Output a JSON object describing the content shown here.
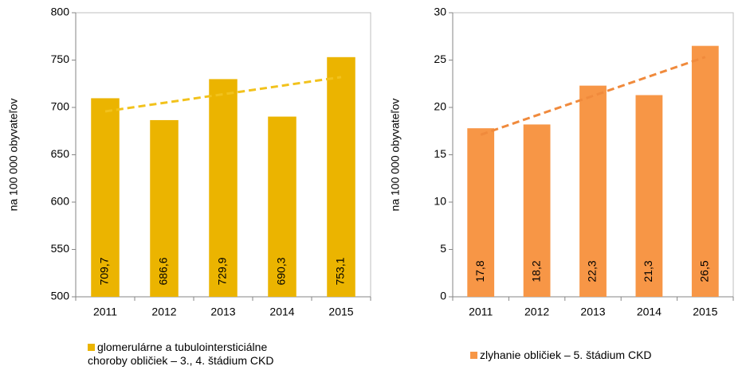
{
  "chart_data": [
    {
      "type": "bar",
      "y_label": "na 100 000 obyvateľov",
      "categories": [
        "2011",
        "2012",
        "2013",
        "2014",
        "2015"
      ],
      "series": [
        {
          "name": "glomerulárne a tubulointersticiálne choroby obličiek – 3., 4. štádium CKD",
          "color": "#ebb400",
          "values": [
            709.7,
            686.6,
            729.9,
            690.3,
            753.1
          ],
          "value_labels": [
            "709,7",
            "686,6",
            "729,9",
            "690,3",
            "753,1"
          ]
        }
      ],
      "ylim": [
        500,
        800
      ],
      "yticks": [
        500,
        550,
        600,
        650,
        700,
        750,
        800
      ],
      "trendline": true,
      "trendline_color": "#f2c21c",
      "grid": false
    },
    {
      "type": "bar",
      "y_label": "na 100 000 obyvateľov",
      "categories": [
        "2011",
        "2012",
        "2013",
        "2014",
        "2015"
      ],
      "series": [
        {
          "name": "zlyhanie obličiek  –  5. štádium CKD",
          "color": "#f79646",
          "values": [
            17.8,
            18.2,
            22.3,
            21.3,
            26.5
          ],
          "value_labels": [
            "17,8",
            "18,2",
            "22,3",
            "21,3",
            "26,5"
          ]
        }
      ],
      "ylim": [
        0,
        30
      ],
      "yticks": [
        0,
        5,
        10,
        15,
        20,
        25,
        30
      ],
      "trendline": true,
      "trendline_color": "#f08a3c",
      "grid": false
    }
  ]
}
